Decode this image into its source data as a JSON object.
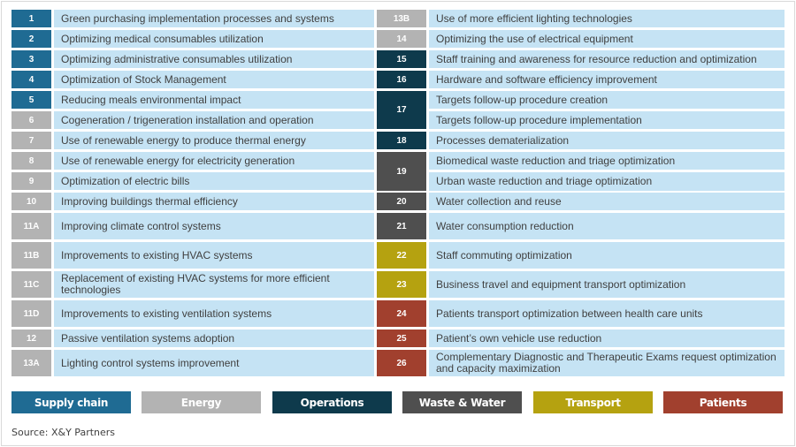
{
  "categories": {
    "supply_chain": {
      "label": "Supply chain",
      "color": "#1f6b93"
    },
    "energy": {
      "label": "Energy",
      "color": "#b3b3b3"
    },
    "operations": {
      "label": "Operations",
      "color": "#0e3a4c"
    },
    "waste_water": {
      "label": "Waste & Water",
      "color": "#4f4f4f"
    },
    "transport": {
      "label": "Transport",
      "color": "#b5a210"
    },
    "patients": {
      "label": "Patients",
      "color": "#a1402e"
    }
  },
  "left_items": [
    {
      "id": "1",
      "text": "Green purchasing implementation processes and systems",
      "category": "supply_chain"
    },
    {
      "id": "2",
      "text": "Optimizing medical consumables utilization",
      "category": "supply_chain"
    },
    {
      "id": "3",
      "text": "Optimizing administrative consumables utilization",
      "category": "supply_chain"
    },
    {
      "id": "4",
      "text": "Optimization of Stock Management",
      "category": "supply_chain"
    },
    {
      "id": "5",
      "text": "Reducing meals environmental impact",
      "category": "supply_chain"
    },
    {
      "id": "6",
      "text": "Cogeneration / trigeneration installation and operation",
      "category": "energy"
    },
    {
      "id": "7",
      "text": "Use of renewable energy to produce thermal energy",
      "category": "energy"
    },
    {
      "id": "8",
      "text": "Use of renewable energy for electricity generation",
      "category": "energy"
    },
    {
      "id": "9",
      "text": "Optimization of electric bills",
      "category": "energy"
    },
    {
      "id": "10",
      "text": "Improving buildings thermal efficiency",
      "category": "energy"
    },
    {
      "id": "11A",
      "text": "Improving climate control systems",
      "category": "energy"
    },
    {
      "id": "11B",
      "text": "Improvements to existing HVAC systems",
      "category": "energy"
    },
    {
      "id": "11C",
      "text": "Replacement of existing HVAC systems for more efficient technologies",
      "category": "energy"
    },
    {
      "id": "11D",
      "text": "Improvements to existing ventilation systems",
      "category": "energy"
    },
    {
      "id": "12",
      "text": "Passive ventilation systems adoption",
      "category": "energy"
    },
    {
      "id": "13A",
      "text": "Lighting control systems improvement",
      "category": "energy"
    }
  ],
  "right_items": [
    {
      "id": "13B",
      "texts": [
        "Use of more efficient lighting technologies"
      ],
      "category": "energy"
    },
    {
      "id": "14",
      "texts": [
        "Optimizing the use of electrical equipment"
      ],
      "category": "energy"
    },
    {
      "id": "15",
      "texts": [
        "Staff training and awareness for resource reduction and optimization"
      ],
      "category": "operations"
    },
    {
      "id": "16",
      "texts": [
        "Hardware and software efficiency improvement"
      ],
      "category": "operations"
    },
    {
      "id": "17",
      "texts": [
        "Targets follow-up procedure creation",
        "Targets follow-up procedure implementation"
      ],
      "category": "operations"
    },
    {
      "id": "18",
      "texts": [
        "Processes dematerialization"
      ],
      "category": "operations"
    },
    {
      "id": "19",
      "texts": [
        "Biomedical waste reduction and triage optimization",
        "Urban waste reduction and triage optimization"
      ],
      "category": "waste_water"
    },
    {
      "id": "20",
      "texts": [
        "Water collection and reuse"
      ],
      "category": "waste_water"
    },
    {
      "id": "21",
      "texts": [
        "Water consumption reduction"
      ],
      "category": "waste_water"
    },
    {
      "id": "22",
      "texts": [
        "Staff commuting optimization"
      ],
      "category": "transport"
    },
    {
      "id": "23",
      "texts": [
        "Business travel and equipment transport optimization"
      ],
      "category": "transport"
    },
    {
      "id": "24",
      "texts": [
        "Patients transport optimization between health care units"
      ],
      "category": "patients"
    },
    {
      "id": "25",
      "texts": [
        "Patient’s own vehicle use reduction"
      ],
      "category": "patients"
    },
    {
      "id": "26",
      "texts": [
        "Complementary Diagnostic and Therapeutic Exams request optimization and capacity maximization"
      ],
      "category": "patients"
    }
  ],
  "legend": [
    "supply_chain",
    "energy",
    "operations",
    "waste_water",
    "transport",
    "patients"
  ],
  "source": "Source: X&Y Partners"
}
